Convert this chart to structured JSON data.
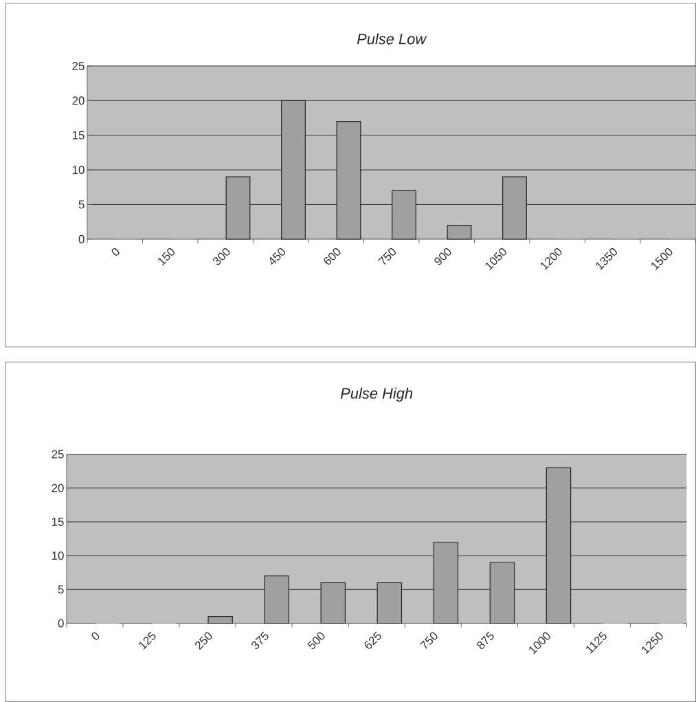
{
  "chart_data": [
    {
      "type": "bar",
      "title": "Pulse Low",
      "categories": [
        "0",
        "150",
        "300",
        "450",
        "600",
        "750",
        "900",
        "1050",
        "1200",
        "1350",
        "1500"
      ],
      "values": [
        0,
        0,
        9,
        20,
        17,
        7,
        2,
        9,
        0,
        0,
        0
      ],
      "color": "#a0a0a0",
      "ylim": [
        0,
        25
      ],
      "yticks": [
        0,
        5,
        10,
        15,
        20,
        25
      ],
      "grid": "y"
    },
    {
      "type": "bar",
      "title": "Pulse High",
      "categories": [
        "0",
        "125",
        "250",
        "375",
        "500",
        "625",
        "750",
        "875",
        "1000",
        "1125",
        "1250"
      ],
      "values": [
        0,
        0,
        1,
        7,
        6,
        6,
        12,
        9,
        23,
        0,
        0
      ],
      "color": "#a0a0a0",
      "ylim": [
        0,
        25
      ],
      "yticks": [
        0,
        5,
        10,
        15,
        20,
        25
      ],
      "grid": "y"
    }
  ]
}
